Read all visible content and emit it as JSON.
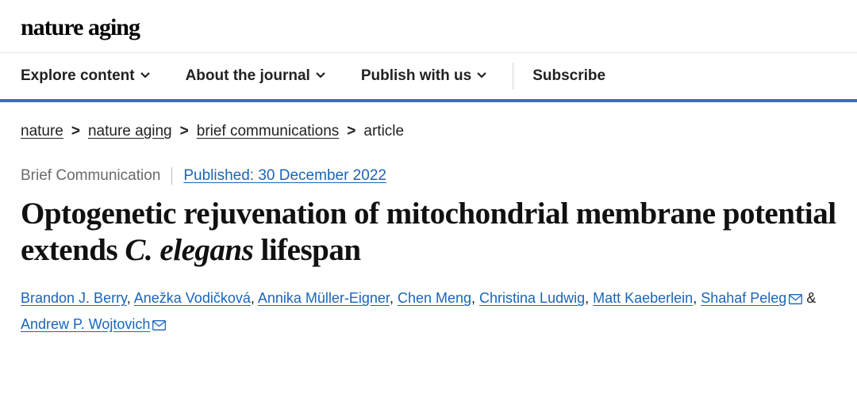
{
  "brand": "nature aging",
  "nav": {
    "items": [
      {
        "label": "Explore content",
        "hasDropdown": true
      },
      {
        "label": "About the journal",
        "hasDropdown": true
      },
      {
        "label": "Publish with us",
        "hasDropdown": true
      }
    ],
    "subscribe": "Subscribe"
  },
  "breadcrumb": {
    "items": [
      {
        "label": "nature",
        "link": true
      },
      {
        "label": "nature aging",
        "link": true
      },
      {
        "label": "brief communications",
        "link": true
      },
      {
        "label": "article",
        "link": false
      }
    ],
    "separator": ">"
  },
  "article": {
    "type": "Brief Communication",
    "published_label": "Published: 30 December 2022",
    "title_pre": "Optogenetic rejuvenation of mitochondrial membrane potential extends ",
    "title_italic": "C. elegans",
    "title_post": " lifespan"
  },
  "authors": [
    {
      "name": "Brandon J. Berry",
      "mail": false
    },
    {
      "name": "Anežka Vodičková",
      "mail": false
    },
    {
      "name": "Annika Müller-Eigner",
      "mail": false
    },
    {
      "name": "Chen Meng",
      "mail": false
    },
    {
      "name": "Christina Ludwig",
      "mail": false
    },
    {
      "name": "Matt Kaeberlein",
      "mail": false
    },
    {
      "name": "Shahaf Peleg",
      "mail": true
    },
    {
      "name": "Andrew P. Wojtovich",
      "mail": true
    }
  ],
  "colors": {
    "link": "#1a65b8",
    "navBorder": "#2b72c9",
    "textMuted": "#6a6a6a"
  }
}
